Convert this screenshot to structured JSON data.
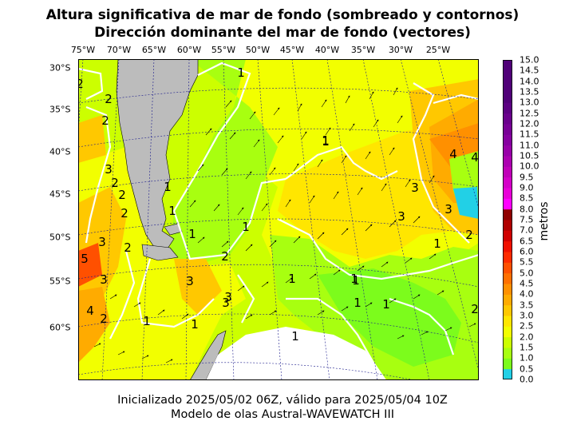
{
  "title_line1": "Altura significativa de mar de fondo (sombreado y contornos)",
  "title_line2": "Dirección dominante del mar de fondo (vectores)",
  "lon_labels": [
    "75°W",
    "70°W",
    "65°W",
    "60°W",
    "55°W",
    "50°W",
    "45°W",
    "40°W",
    "35°W",
    "30°W",
    "25°W"
  ],
  "lat_labels": [
    "30°S",
    "35°S",
    "40°S",
    "45°S",
    "50°S",
    "55°S",
    "60°S"
  ],
  "contour_labels": [
    "2",
    "2",
    "2",
    "1",
    "1",
    "3",
    "2",
    "2",
    "1",
    "1",
    "2",
    "3",
    "1",
    "2",
    "5",
    "3",
    "3",
    "4",
    "2",
    "1",
    "1",
    "2",
    "3",
    "3",
    "1",
    "1",
    "1",
    "4",
    "1",
    "3",
    "3",
    "4",
    "3",
    "2",
    "1",
    "2",
    "1",
    "1",
    "1",
    "1"
  ],
  "colorbar": {
    "units": "metros",
    "ticks": [
      "15.0",
      "14.5",
      "14.0",
      "13.5",
      "13.0",
      "12.5",
      "12.0",
      "11.5",
      "11.0",
      "10.5",
      "10.0",
      "9.5",
      "9.0",
      "8.5",
      "8.0",
      "7.5",
      "7.0",
      "6.5",
      "6.0",
      "5.5",
      "5.0",
      "4.5",
      "4.0",
      "3.5",
      "3.0",
      "2.5",
      "2.0",
      "1.5",
      "1.0",
      "0.5",
      "0.0"
    ],
    "colors": [
      "#22d0e6",
      "#7cfc1c",
      "#a8ff10",
      "#ccff00",
      "#f2ff00",
      "#ffe600",
      "#ffc800",
      "#ffab00",
      "#ff9000",
      "#ff7000",
      "#ff5000",
      "#ff2b00",
      "#f01000",
      "#d00000",
      "#b00000",
      "#900000",
      "#ff00ff",
      "#e800d8",
      "#d400c8",
      "#c000b8",
      "#ac00b0",
      "#9800a8",
      "#8600a0",
      "#780096",
      "#6a008c",
      "#5c0082",
      "#500078"
    ]
  },
  "footer_line1": "Inicializado 2025/05/02 06Z, válido para 2025/05/04 10Z",
  "footer_line2": "Modelo de olas Austral-WAVEWATCH III"
}
